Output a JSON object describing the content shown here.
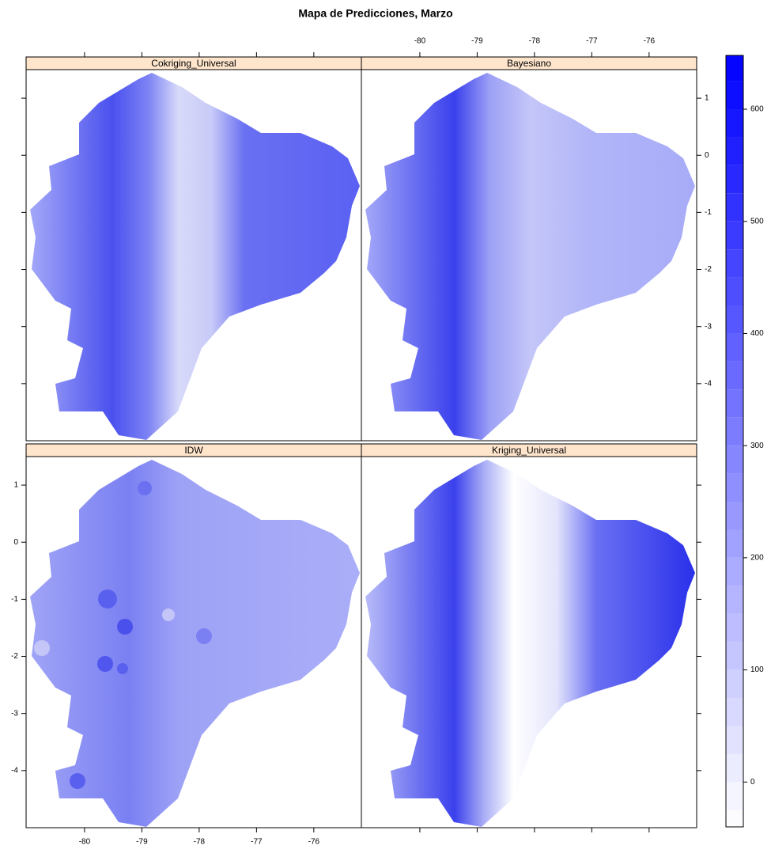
{
  "title": "Mapa de Predicciones, Marzo",
  "panels": [
    {
      "title": "Cokriging_Universal"
    },
    {
      "title": "Bayesiano"
    },
    {
      "title": "IDW"
    },
    {
      "title": "Kriging_Universal"
    }
  ],
  "x_axis": {
    "lim": [
      -81.02,
      -75.17
    ],
    "ticks": [
      -80,
      -79,
      -78,
      -77,
      -76
    ]
  },
  "y_axis": {
    "lim": [
      -5.0,
      1.5
    ],
    "ticks": [
      1,
      0,
      -1,
      -2,
      -3,
      -4
    ]
  },
  "colorbar": {
    "lim": [
      -40,
      648
    ],
    "ticks": [
      0,
      100,
      200,
      300,
      400,
      500,
      600
    ],
    "level_step": 25,
    "colors": [
      "#ffffff",
      "#0000ff"
    ]
  }
}
